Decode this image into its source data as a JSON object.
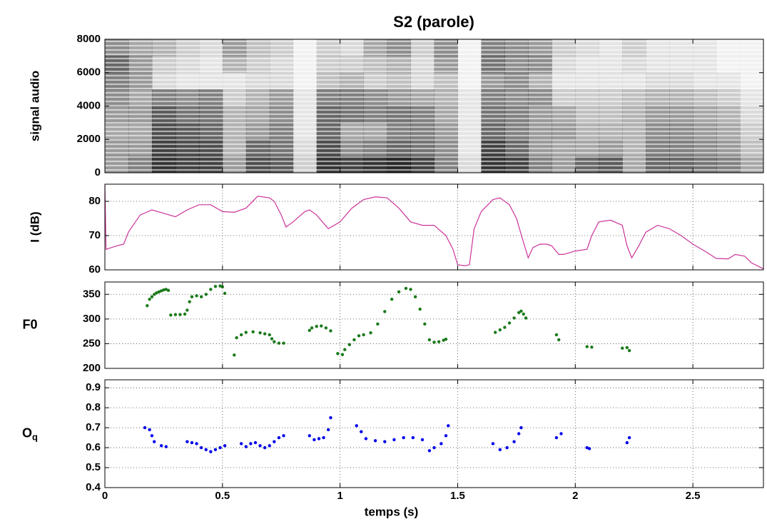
{
  "chart_data": [
    {
      "type": "spectrogram",
      "title": "S2   (parole)",
      "ylabel": "signal audio",
      "xlim": [
        0,
        2.8
      ],
      "xticks": [
        0,
        0.5,
        1,
        1.5,
        2,
        2.5
      ],
      "ylim": [
        0,
        8000
      ],
      "yticks": [
        0,
        2000,
        4000,
        6000,
        8000
      ],
      "xbins": [
        0,
        0.1,
        0.2,
        0.3,
        0.4,
        0.5,
        0.6,
        0.7,
        0.8,
        0.9,
        1,
        1.1,
        1.2,
        1.3,
        1.4,
        1.5,
        1.6,
        1.7,
        1.8,
        1.9,
        2,
        2.1,
        2.2,
        2.3,
        2.4,
        2.5,
        2.6,
        2.7,
        2.8
      ],
      "ybins": [
        0,
        1000,
        2000,
        3000,
        4000,
        5000,
        6000,
        7000,
        8000
      ],
      "z": [
        [
          0.4,
          0.4,
          0.35,
          0.4,
          0.45,
          0.5,
          0.6,
          0.45
        ],
        [
          0.5,
          0.4,
          0.35,
          0.4,
          0.35,
          0.4,
          0.4,
          0.35
        ],
        [
          0.8,
          0.75,
          0.7,
          0.65,
          0.5,
          0.15,
          0.2,
          0.3
        ],
        [
          0.75,
          0.7,
          0.65,
          0.55,
          0.45,
          0.1,
          0.15,
          0.2
        ],
        [
          0.75,
          0.7,
          0.6,
          0.55,
          0.5,
          0.1,
          0.1,
          0.15
        ],
        [
          0.4,
          0.3,
          0.3,
          0.3,
          0.2,
          0.1,
          0.3,
          0.4
        ],
        [
          0.7,
          0.6,
          0.4,
          0.35,
          0.3,
          0.15,
          0.2,
          0.25
        ],
        [
          0.65,
          0.55,
          0.5,
          0.45,
          0.4,
          0.15,
          0.15,
          0.2
        ],
        [
          0.2,
          0.15,
          0.1,
          0.1,
          0.1,
          0.05,
          0.05,
          0.05
        ],
        [
          0.8,
          0.7,
          0.6,
          0.6,
          0.5,
          0.25,
          0.2,
          0.2
        ],
        [
          0.75,
          0.45,
          0.35,
          0.55,
          0.5,
          0.3,
          0.2,
          0.15
        ],
        [
          0.8,
          0.5,
          0.35,
          0.5,
          0.45,
          0.2,
          0.25,
          0.35
        ],
        [
          0.85,
          0.6,
          0.5,
          0.55,
          0.4,
          0.25,
          0.3,
          0.45
        ],
        [
          0.75,
          0.55,
          0.5,
          0.5,
          0.35,
          0.15,
          0.15,
          0.2
        ],
        [
          0.5,
          0.45,
          0.4,
          0.35,
          0.3,
          0.25,
          0.4,
          0.45
        ],
        [
          0.15,
          0.1,
          0.1,
          0.1,
          0.1,
          0.05,
          0.05,
          0.05
        ],
        [
          0.8,
          0.75,
          0.6,
          0.55,
          0.5,
          0.4,
          0.55,
          0.5
        ],
        [
          0.75,
          0.6,
          0.5,
          0.5,
          0.45,
          0.45,
          0.45,
          0.45
        ],
        [
          0.5,
          0.4,
          0.4,
          0.4,
          0.45,
          0.3,
          0.45,
          0.4
        ],
        [
          0.4,
          0.35,
          0.4,
          0.35,
          0.2,
          0.1,
          0.15,
          0.2
        ],
        [
          0.6,
          0.35,
          0.3,
          0.25,
          0.2,
          0.1,
          0.1,
          0.15
        ],
        [
          0.65,
          0.4,
          0.3,
          0.25,
          0.2,
          0.1,
          0.1,
          0.1
        ],
        [
          0.35,
          0.3,
          0.3,
          0.3,
          0.25,
          0.1,
          0.15,
          0.2
        ],
        [
          0.6,
          0.5,
          0.45,
          0.4,
          0.3,
          0.15,
          0.1,
          0.1
        ],
        [
          0.6,
          0.5,
          0.45,
          0.4,
          0.3,
          0.15,
          0.1,
          0.1
        ],
        [
          0.55,
          0.45,
          0.4,
          0.35,
          0.25,
          0.1,
          0.1,
          0.1
        ],
        [
          0.5,
          0.4,
          0.35,
          0.3,
          0.2,
          0.1,
          0.05,
          0.05
        ],
        [
          0.35,
          0.25,
          0.2,
          0.15,
          0.1,
          0.05,
          0.05,
          0.05
        ]
      ],
      "color": "#000000",
      "grid": false,
      "ylabel_rotated": true
    },
    {
      "type": "line",
      "ylabel": "I (dB)",
      "ylabel_rotated": true,
      "xlim": [
        0,
        2.8
      ],
      "xticks": [
        0,
        0.5,
        1,
        1.5,
        2,
        2.5
      ],
      "ylim": [
        60,
        85
      ],
      "yticks": [
        60,
        70,
        80
      ],
      "grid": true,
      "color": "#cc3399",
      "x": [
        0,
        0.005,
        0.05,
        0.08,
        0.1,
        0.15,
        0.2,
        0.25,
        0.3,
        0.35,
        0.4,
        0.45,
        0.5,
        0.55,
        0.6,
        0.65,
        0.7,
        0.72,
        0.75,
        0.77,
        0.8,
        0.85,
        0.87,
        0.9,
        0.95,
        1.0,
        1.05,
        1.1,
        1.15,
        1.2,
        1.25,
        1.3,
        1.35,
        1.4,
        1.45,
        1.48,
        1.5,
        1.53,
        1.55,
        1.57,
        1.6,
        1.65,
        1.68,
        1.72,
        1.75,
        1.78,
        1.8,
        1.82,
        1.85,
        1.88,
        1.9,
        1.93,
        1.95,
        2.0,
        2.05,
        2.07,
        2.1,
        2.15,
        2.2,
        2.22,
        2.24,
        2.27,
        2.3,
        2.35,
        2.4,
        2.45,
        2.5,
        2.55,
        2.6,
        2.65,
        2.68,
        2.72,
        2.75,
        2.8
      ],
      "values": [
        85,
        66,
        67,
        67.5,
        71,
        76,
        77.5,
        76.5,
        75.5,
        77.5,
        79,
        79,
        77,
        76.8,
        78,
        81.5,
        81,
        80,
        76,
        72.5,
        74,
        77,
        77.5,
        76,
        72,
        74,
        78,
        80.5,
        81.3,
        81,
        78,
        74,
        73,
        73,
        70,
        66,
        61.5,
        61.2,
        61.5,
        72,
        77,
        80.5,
        81,
        79,
        75,
        68,
        63.5,
        66.5,
        67.5,
        67.5,
        67,
        64.5,
        64.5,
        65.5,
        66,
        70,
        74,
        74.5,
        73,
        67,
        63.5,
        67,
        71,
        73,
        72,
        70,
        67.5,
        65.5,
        63.3,
        63.2,
        64.5,
        64,
        62,
        60.3
      ]
    },
    {
      "type": "scatter",
      "ylabel": "F0",
      "ylabel_rotated": false,
      "xlim": [
        0,
        2.8
      ],
      "xticks": [
        0,
        0.5,
        1,
        1.5,
        2,
        2.5
      ],
      "ylim": [
        200,
        375
      ],
      "yticks": [
        200,
        250,
        300,
        350
      ],
      "grid": true,
      "color": "#1a7a1a",
      "x": [
        0.18,
        0.19,
        0.2,
        0.21,
        0.22,
        0.23,
        0.24,
        0.25,
        0.26,
        0.27,
        0.28,
        0.3,
        0.32,
        0.34,
        0.35,
        0.36,
        0.37,
        0.39,
        0.41,
        0.43,
        0.45,
        0.47,
        0.49,
        0.5,
        0.51,
        0.55,
        0.56,
        0.58,
        0.6,
        0.63,
        0.66,
        0.68,
        0.7,
        0.71,
        0.72,
        0.74,
        0.76,
        0.87,
        0.88,
        0.9,
        0.92,
        0.94,
        0.96,
        0.99,
        1.01,
        1.02,
        1.04,
        1.06,
        1.08,
        1.1,
        1.13,
        1.16,
        1.19,
        1.22,
        1.25,
        1.28,
        1.3,
        1.32,
        1.34,
        1.36,
        1.38,
        1.4,
        1.42,
        1.44,
        1.45,
        1.66,
        1.68,
        1.7,
        1.72,
        1.74,
        1.76,
        1.77,
        1.78,
        1.79,
        1.92,
        1.93,
        2.05,
        2.07,
        2.2,
        2.22,
        2.23
      ],
      "values": [
        327,
        340,
        345,
        350,
        353,
        355,
        357,
        359,
        360,
        358,
        308,
        309,
        309,
        310,
        318,
        335,
        345,
        347,
        345,
        350,
        360,
        366,
        367,
        365,
        352,
        227,
        262,
        268,
        273,
        274,
        272,
        270,
        268,
        260,
        254,
        251,
        251,
        277,
        282,
        285,
        286,
        282,
        276,
        230,
        228,
        238,
        248,
        258,
        266,
        268,
        272,
        290,
        315,
        340,
        355,
        362,
        360,
        345,
        320,
        290,
        258,
        253,
        254,
        257,
        259,
        273,
        278,
        283,
        292,
        302,
        313,
        316,
        310,
        302,
        268,
        258,
        244,
        243,
        241,
        242,
        236
      ]
    },
    {
      "type": "scatter",
      "ylabel": "O",
      "ylabel_sub": "q",
      "ylabel_rotated": false,
      "xlabel": "temps (s)",
      "xlim": [
        0,
        2.8
      ],
      "xticks": [
        0,
        0.5,
        1,
        1.5,
        2,
        2.5
      ],
      "ylim": [
        0.4,
        0.94
      ],
      "yticks": [
        0.4,
        0.5,
        0.6,
        0.7,
        0.8,
        0.9
      ],
      "grid": true,
      "color": "#0000ee",
      "xtick_labels": true,
      "x": [
        0.17,
        0.19,
        0.2,
        0.21,
        0.24,
        0.26,
        0.35,
        0.37,
        0.39,
        0.41,
        0.43,
        0.45,
        0.47,
        0.49,
        0.51,
        0.58,
        0.6,
        0.62,
        0.64,
        0.66,
        0.68,
        0.7,
        0.72,
        0.74,
        0.76,
        0.87,
        0.89,
        0.91,
        0.93,
        0.95,
        0.96,
        1.07,
        1.09,
        1.11,
        1.15,
        1.19,
        1.23,
        1.27,
        1.31,
        1.35,
        1.38,
        1.4,
        1.43,
        1.45,
        1.46,
        1.65,
        1.68,
        1.71,
        1.74,
        1.76,
        1.77,
        1.92,
        1.94,
        2.05,
        2.06,
        2.22,
        2.23
      ],
      "values": [
        0.7,
        0.69,
        0.66,
        0.63,
        0.61,
        0.605,
        0.63,
        0.625,
        0.62,
        0.6,
        0.59,
        0.58,
        0.59,
        0.6,
        0.61,
        0.62,
        0.605,
        0.62,
        0.625,
        0.61,
        0.6,
        0.61,
        0.63,
        0.65,
        0.66,
        0.66,
        0.64,
        0.645,
        0.65,
        0.69,
        0.75,
        0.71,
        0.68,
        0.645,
        0.635,
        0.63,
        0.64,
        0.65,
        0.65,
        0.64,
        0.585,
        0.6,
        0.62,
        0.66,
        0.71,
        0.62,
        0.59,
        0.6,
        0.63,
        0.67,
        0.7,
        0.65,
        0.67,
        0.6,
        0.595,
        0.625,
        0.65
      ]
    }
  ]
}
